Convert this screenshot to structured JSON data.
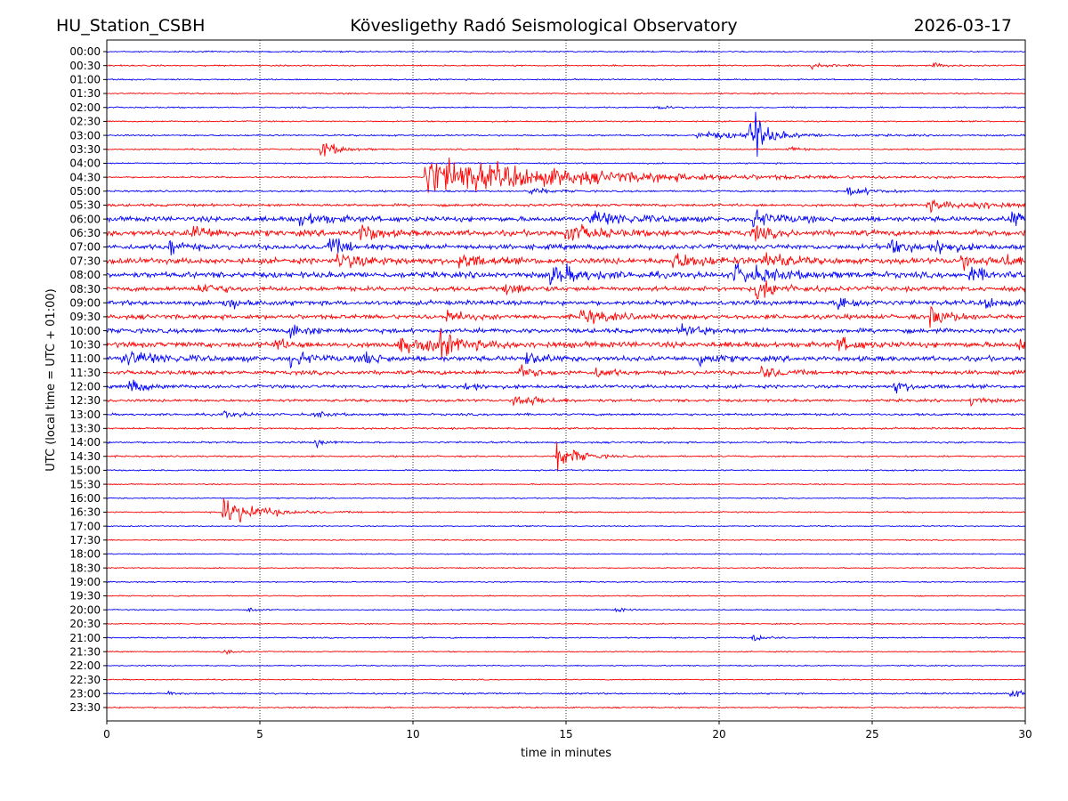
{
  "header": {
    "station": "HU_Station_CSBH",
    "observatory": "Kövesligethy Radó Seismological Observatory",
    "date": "2026-03-17"
  },
  "chart_data": {
    "type": "helicorder",
    "title": "Kövesligethy Radó Seismological Observatory",
    "xlabel": "time in minutes",
    "ylabel": "UTC (local time = UTC + 01:00)",
    "xlim": [
      0,
      30
    ],
    "x_ticks": [
      "0",
      "5",
      "10",
      "15",
      "20",
      "25",
      "30"
    ],
    "grid": "vertical dotted lines at 5-minute intervals",
    "colors": {
      "even_rows": "#0000ff",
      "odd_rows": "#ff0000",
      "grid": "#000000"
    },
    "rows": [
      {
        "label": "00:00",
        "noise": 0.6,
        "events": []
      },
      {
        "label": "00:30",
        "noise": 0.6,
        "events": [
          {
            "t": 23.0,
            "a": 2.5,
            "d": 0.6
          },
          {
            "t": 27.0,
            "a": 2,
            "d": 0.5
          }
        ]
      },
      {
        "label": "01:00",
        "noise": 0.6,
        "events": []
      },
      {
        "label": "01:30",
        "noise": 0.6,
        "events": []
      },
      {
        "label": "02:00",
        "noise": 0.6,
        "events": [
          {
            "t": 18.0,
            "a": 1.5,
            "d": 0.5
          }
        ]
      },
      {
        "label": "02:30",
        "noise": 0.6,
        "events": []
      },
      {
        "label": "03:00",
        "noise": 0.7,
        "events": [
          {
            "t": 19.3,
            "a": 3,
            "d": 2.5
          },
          {
            "t": 21.0,
            "a": 48,
            "d": 0.2
          },
          {
            "t": 21.3,
            "a": 6,
            "d": 0.6
          }
        ]
      },
      {
        "label": "03:30",
        "noise": 0.6,
        "events": [
          {
            "t": 7.0,
            "a": 9,
            "d": 0.5
          },
          {
            "t": 22.2,
            "a": 2.5,
            "d": 0.4
          }
        ]
      },
      {
        "label": "04:00",
        "noise": 0.6,
        "events": []
      },
      {
        "label": "04:30",
        "noise": 0.7,
        "events": [
          {
            "t": 10.4,
            "a": 18,
            "d": 4.5
          }
        ]
      },
      {
        "label": "05:00",
        "noise": 0.8,
        "events": [
          {
            "t": 13.8,
            "a": 4,
            "d": 0.5
          },
          {
            "t": 24.2,
            "a": 4,
            "d": 0.8
          }
        ]
      },
      {
        "label": "05:30",
        "noise": 1.2,
        "events": [
          {
            "t": 26.8,
            "a": 5,
            "d": 0.8
          },
          {
            "t": 28.3,
            "a": 4,
            "d": 0.8
          }
        ]
      },
      {
        "label": "06:00",
        "noise": 2.2,
        "events": [
          {
            "t": 6.3,
            "a": 6,
            "d": 0.8
          },
          {
            "t": 15.8,
            "a": 7,
            "d": 1.2
          },
          {
            "t": 21.0,
            "a": 8,
            "d": 0.8
          },
          {
            "t": 29.5,
            "a": 9,
            "d": 0.5
          }
        ]
      },
      {
        "label": "06:30",
        "noise": 2.5,
        "events": [
          {
            "t": 2.8,
            "a": 7,
            "d": 0.6
          },
          {
            "t": 8.3,
            "a": 12,
            "d": 0.4
          },
          {
            "t": 14.9,
            "a": 9,
            "d": 0.9
          },
          {
            "t": 21.1,
            "a": 7,
            "d": 0.5
          }
        ]
      },
      {
        "label": "07:00",
        "noise": 2.2,
        "events": [
          {
            "t": 2.0,
            "a": 9,
            "d": 0.4
          },
          {
            "t": 7.2,
            "a": 8,
            "d": 0.6
          },
          {
            "t": 25.5,
            "a": 5,
            "d": 1.0
          },
          {
            "t": 27.1,
            "a": 8,
            "d": 0.4
          }
        ]
      },
      {
        "label": "07:30",
        "noise": 2.5,
        "events": [
          {
            "t": 7.5,
            "a": 6,
            "d": 1.0
          },
          {
            "t": 11.5,
            "a": 8,
            "d": 0.6
          },
          {
            "t": 18.5,
            "a": 7,
            "d": 1.0
          },
          {
            "t": 21.5,
            "a": 10,
            "d": 0.6
          },
          {
            "t": 27.9,
            "a": 7,
            "d": 0.5
          },
          {
            "t": 29.2,
            "a": 7,
            "d": 0.5
          }
        ]
      },
      {
        "label": "08:00",
        "noise": 2.5,
        "events": [
          {
            "t": 14.5,
            "a": 9,
            "d": 1.0
          },
          {
            "t": 20.5,
            "a": 9,
            "d": 1.2
          },
          {
            "t": 28.1,
            "a": 7,
            "d": 0.6
          }
        ]
      },
      {
        "label": "08:30",
        "noise": 2.0,
        "events": [
          {
            "t": 3.0,
            "a": 6,
            "d": 0.6
          },
          {
            "t": 13.0,
            "a": 5,
            "d": 0.6
          },
          {
            "t": 21.2,
            "a": 12,
            "d": 0.6
          }
        ]
      },
      {
        "label": "09:00",
        "noise": 2.0,
        "events": [
          {
            "t": 3.8,
            "a": 6,
            "d": 0.5
          },
          {
            "t": 23.9,
            "a": 8,
            "d": 0.5
          },
          {
            "t": 28.7,
            "a": 5,
            "d": 0.5
          }
        ]
      },
      {
        "label": "09:30",
        "noise": 2.0,
        "events": [
          {
            "t": 11.1,
            "a": 6,
            "d": 0.5
          },
          {
            "t": 15.5,
            "a": 7,
            "d": 0.8
          },
          {
            "t": 26.9,
            "a": 9,
            "d": 0.6
          }
        ]
      },
      {
        "label": "10:00",
        "noise": 2.0,
        "events": [
          {
            "t": 6.0,
            "a": 7,
            "d": 0.5
          },
          {
            "t": 18.8,
            "a": 7,
            "d": 0.5
          }
        ]
      },
      {
        "label": "10:30",
        "noise": 2.4,
        "events": [
          {
            "t": 5.4,
            "a": 6,
            "d": 0.4
          },
          {
            "t": 9.5,
            "a": 5,
            "d": 2.0
          },
          {
            "t": 10.7,
            "a": 13,
            "d": 0.5
          },
          {
            "t": 23.9,
            "a": 7,
            "d": 0.5
          },
          {
            "t": 29.8,
            "a": 6,
            "d": 0.5
          }
        ]
      },
      {
        "label": "11:00",
        "noise": 2.2,
        "events": [
          {
            "t": 0.5,
            "a": 7,
            "d": 1.2
          },
          {
            "t": 6.0,
            "a": 7,
            "d": 0.6
          },
          {
            "t": 8.4,
            "a": 7,
            "d": 0.4
          },
          {
            "t": 13.7,
            "a": 7,
            "d": 0.5
          },
          {
            "t": 19.3,
            "a": 7,
            "d": 0.5
          }
        ]
      },
      {
        "label": "11:30",
        "noise": 1.8,
        "events": [
          {
            "t": 13.5,
            "a": 5,
            "d": 0.5
          },
          {
            "t": 16.0,
            "a": 5,
            "d": 0.4
          },
          {
            "t": 21.4,
            "a": 6,
            "d": 0.5
          }
        ]
      },
      {
        "label": "12:00",
        "noise": 1.5,
        "events": [
          {
            "t": 0.7,
            "a": 7,
            "d": 0.5
          },
          {
            "t": 11.7,
            "a": 5,
            "d": 0.4
          },
          {
            "t": 25.7,
            "a": 5,
            "d": 0.6
          }
        ]
      },
      {
        "label": "12:30",
        "noise": 1.2,
        "events": [
          {
            "t": 13.3,
            "a": 7,
            "d": 0.7
          },
          {
            "t": 28.2,
            "a": 4,
            "d": 0.5
          }
        ]
      },
      {
        "label": "13:00",
        "noise": 1.0,
        "events": [
          {
            "t": 3.8,
            "a": 3,
            "d": 0.5
          },
          {
            "t": 6.8,
            "a": 3,
            "d": 0.4
          }
        ]
      },
      {
        "label": "13:30",
        "noise": 0.8,
        "events": []
      },
      {
        "label": "14:00",
        "noise": 0.8,
        "events": [
          {
            "t": 6.8,
            "a": 4,
            "d": 0.3
          }
        ]
      },
      {
        "label": "14:30",
        "noise": 0.7,
        "events": [
          {
            "t": 14.7,
            "a": 14,
            "d": 0.6
          }
        ]
      },
      {
        "label": "15:00",
        "noise": 0.6,
        "events": []
      },
      {
        "label": "15:30",
        "noise": 0.5,
        "events": []
      },
      {
        "label": "16:00",
        "noise": 0.5,
        "events": []
      },
      {
        "label": "16:30",
        "noise": 0.6,
        "events": [
          {
            "t": 3.8,
            "a": 14,
            "d": 1.0
          }
        ]
      },
      {
        "label": "17:00",
        "noise": 0.5,
        "events": []
      },
      {
        "label": "17:30",
        "noise": 0.5,
        "events": []
      },
      {
        "label": "18:00",
        "noise": 0.5,
        "events": []
      },
      {
        "label": "18:30",
        "noise": 0.5,
        "events": []
      },
      {
        "label": "19:00",
        "noise": 0.5,
        "events": []
      },
      {
        "label": "19:30",
        "noise": 0.5,
        "events": []
      },
      {
        "label": "20:00",
        "noise": 0.5,
        "events": [
          {
            "t": 4.6,
            "a": 2.5,
            "d": 0.3
          },
          {
            "t": 16.6,
            "a": 2.5,
            "d": 0.3
          }
        ]
      },
      {
        "label": "20:30",
        "noise": 0.5,
        "events": []
      },
      {
        "label": "21:00",
        "noise": 0.6,
        "events": [
          {
            "t": 21.1,
            "a": 5,
            "d": 0.3
          }
        ]
      },
      {
        "label": "21:30",
        "noise": 0.5,
        "events": [
          {
            "t": 3.8,
            "a": 3,
            "d": 0.3
          }
        ]
      },
      {
        "label": "22:00",
        "noise": 0.5,
        "events": []
      },
      {
        "label": "22:30",
        "noise": 0.5,
        "events": []
      },
      {
        "label": "23:00",
        "noise": 0.7,
        "events": [
          {
            "t": 2.0,
            "a": 2,
            "d": 0.3
          },
          {
            "t": 29.5,
            "a": 5,
            "d": 0.4
          }
        ]
      },
      {
        "label": "23:30",
        "noise": 0.6,
        "events": []
      }
    ]
  }
}
